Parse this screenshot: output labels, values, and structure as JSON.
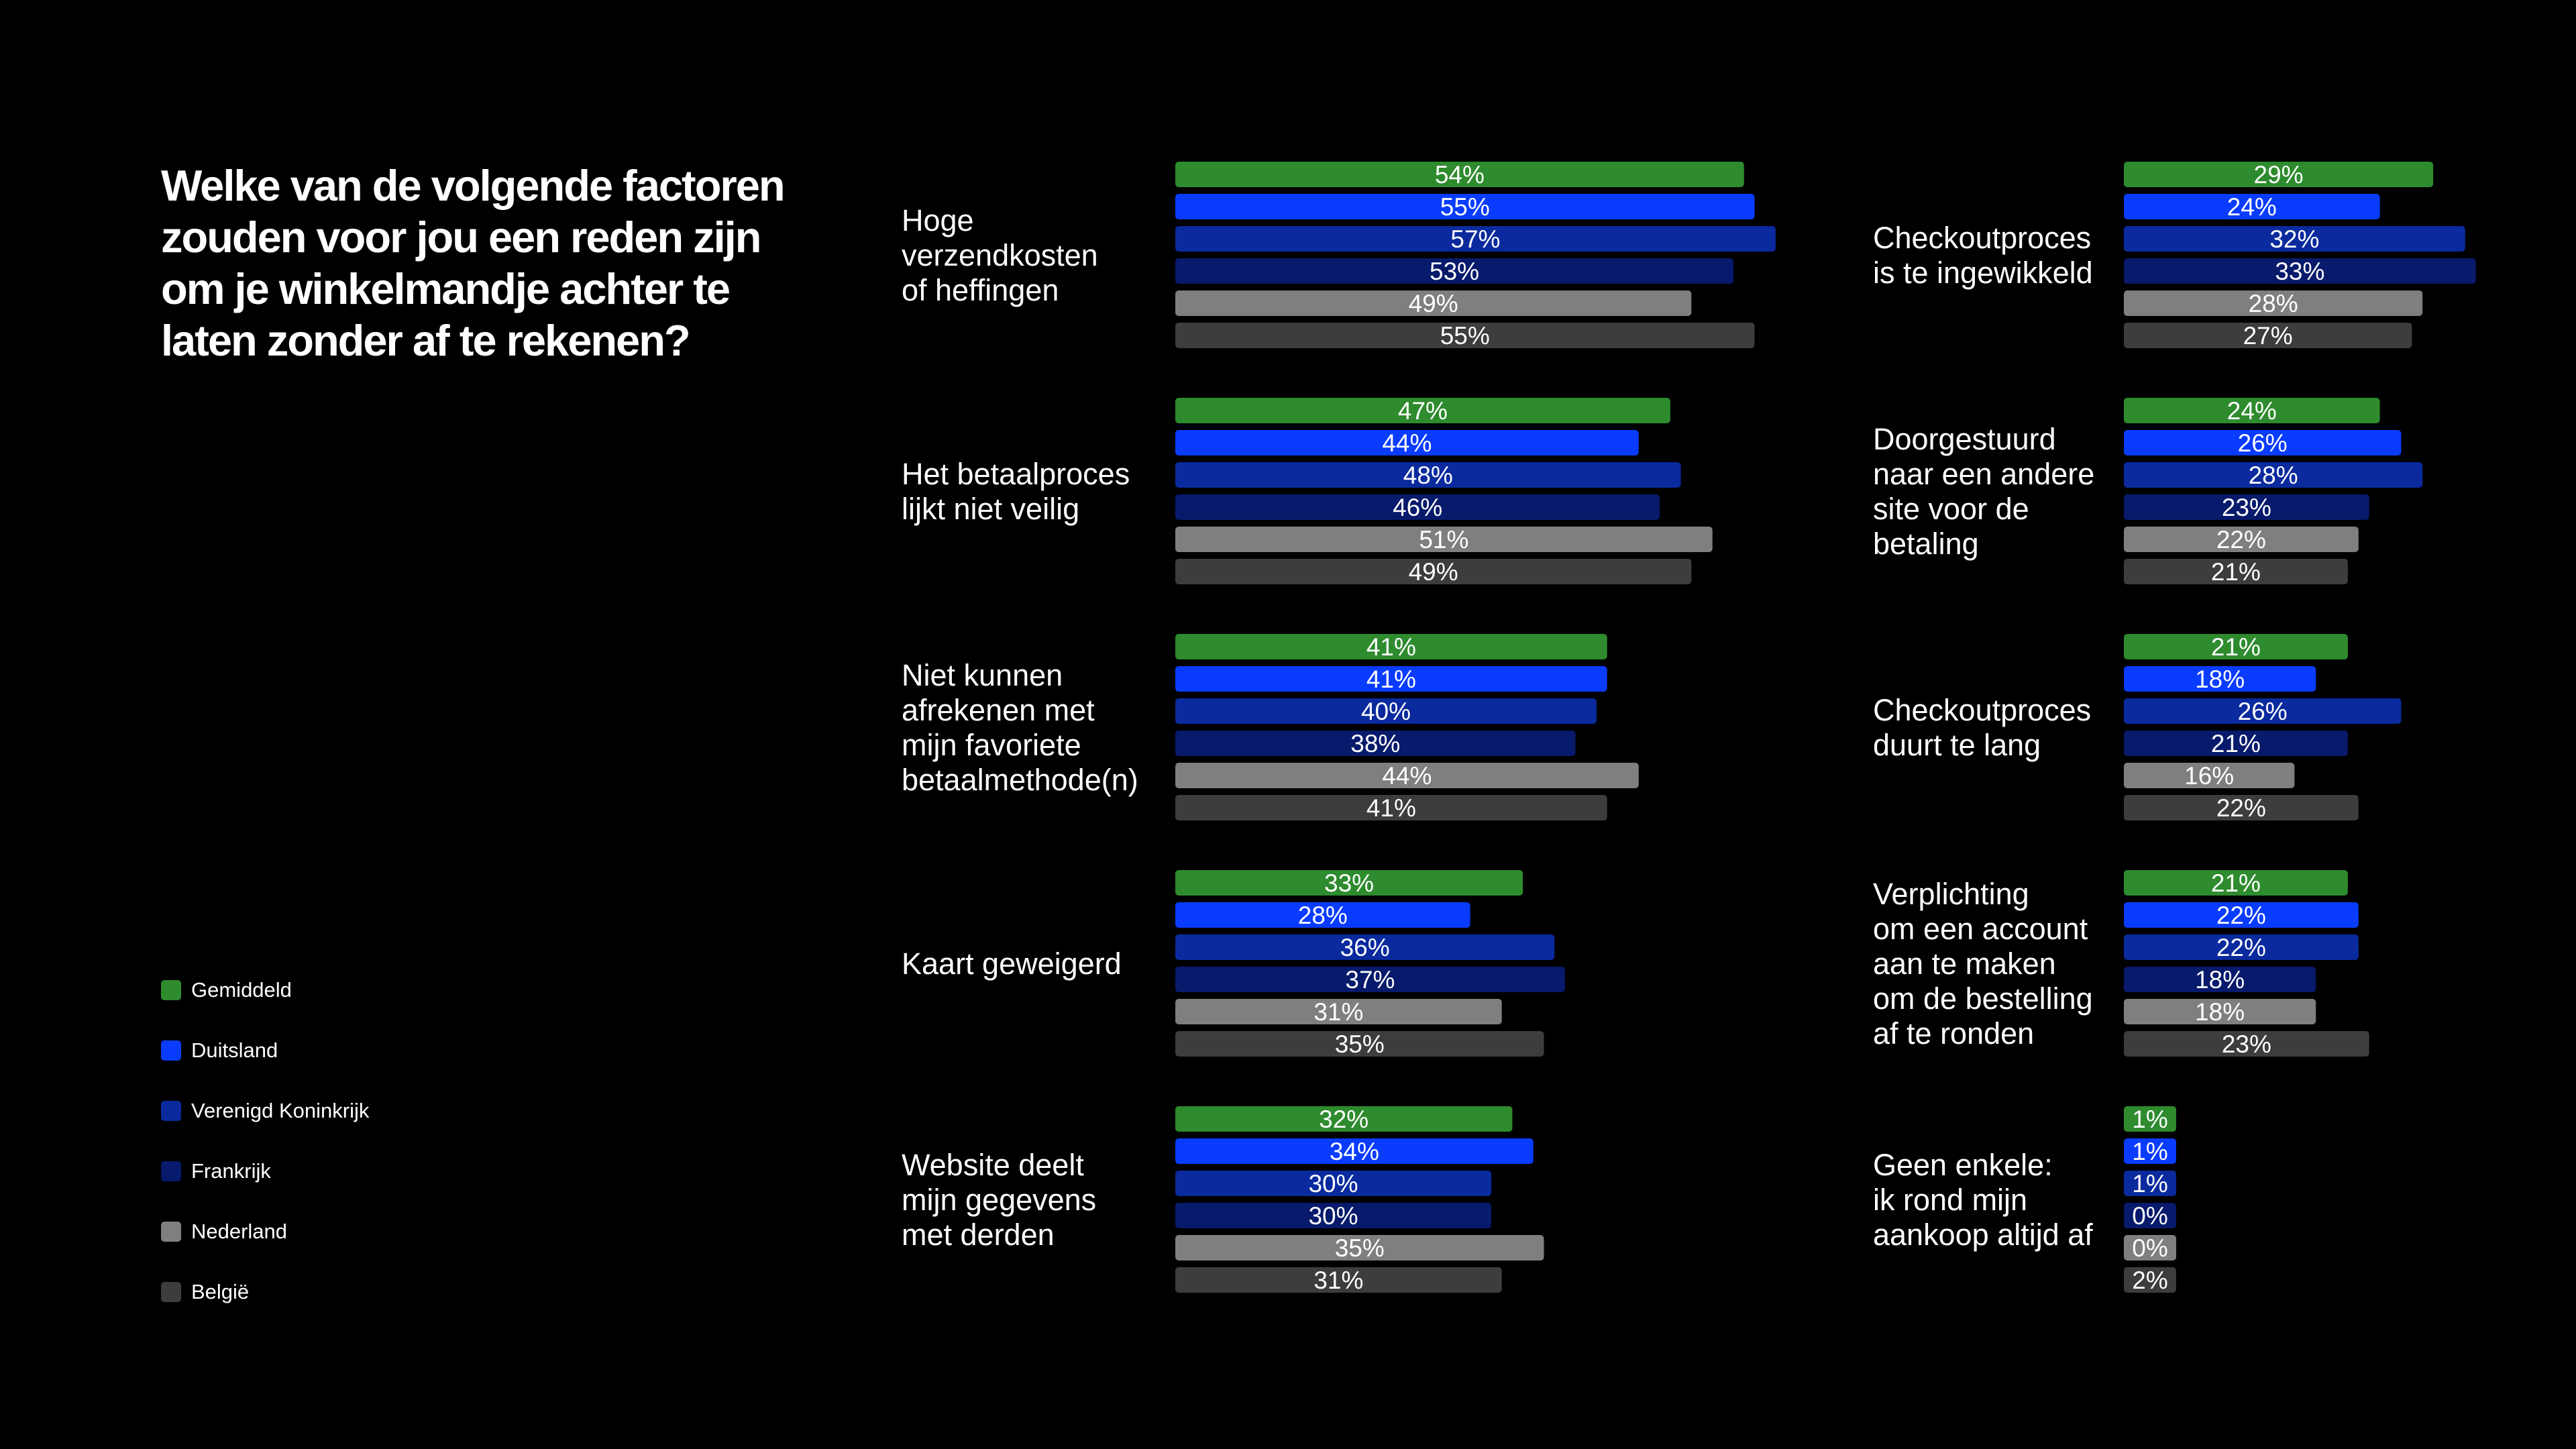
{
  "title": "Welke van de volgende factoren zouden voor jou een reden zijn om je winkelmandje achter te laten zonder af te rekenen?",
  "legend": [
    {
      "label": "Gemiddeld",
      "color": "#2e8b2e"
    },
    {
      "label": "Duitsland",
      "color": "#0a3cff"
    },
    {
      "label": "Verenigd Koninkrijk",
      "color": "#0a2a9e"
    },
    {
      "label": "Frankrijk",
      "color": "#071a6b"
    },
    {
      "label": "Nederland",
      "color": "#7f7f7f"
    },
    {
      "label": "België",
      "color": "#3d3d3d"
    }
  ],
  "chart_data": {
    "type": "bar",
    "orientation": "horizontal",
    "value_unit": "%",
    "series": [
      "Gemiddeld",
      "Duitsland",
      "Verenigd Koninkrijk",
      "Frankrijk",
      "Nederland",
      "België"
    ],
    "groups": [
      {
        "label": [
          "Hoge",
          "verzendkosten",
          "of heffingen"
        ],
        "values": [
          54,
          55,
          57,
          53,
          49,
          55
        ]
      },
      {
        "label": [
          "Het betaalproces",
          "lijkt niet veilig"
        ],
        "values": [
          47,
          44,
          48,
          46,
          51,
          49
        ]
      },
      {
        "label": [
          "Niet kunnen",
          "afrekenen met",
          "mijn favoriete",
          "betaalmethode(n)"
        ],
        "values": [
          41,
          41,
          40,
          38,
          44,
          41
        ]
      },
      {
        "label": [
          "Kaart geweigerd"
        ],
        "values": [
          33,
          28,
          36,
          37,
          31,
          35
        ]
      },
      {
        "label": [
          "Website deelt",
          "mijn gegevens",
          "met derden"
        ],
        "values": [
          32,
          34,
          30,
          30,
          35,
          31
        ]
      },
      {
        "label": [
          "Checkoutproces",
          "is te ingewikkeld"
        ],
        "values": [
          29,
          24,
          32,
          33,
          28,
          27
        ]
      },
      {
        "label": [
          "Doorgestuurd",
          "naar een andere",
          "site voor de",
          "betaling"
        ],
        "values": [
          24,
          26,
          28,
          23,
          22,
          21
        ]
      },
      {
        "label": [
          "Checkoutproces",
          "duurt te lang"
        ],
        "values": [
          21,
          18,
          26,
          21,
          16,
          22
        ]
      },
      {
        "label": [
          "Verplichting",
          "om een account",
          "aan te maken",
          "om de bestelling",
          "af te ronden"
        ],
        "values": [
          21,
          22,
          22,
          18,
          18,
          23
        ]
      },
      {
        "label": [
          "Geen enkele:",
          "ik rond mijn",
          "aankoop altijd af"
        ],
        "values": [
          1,
          1,
          1,
          0,
          0,
          2
        ]
      }
    ]
  }
}
